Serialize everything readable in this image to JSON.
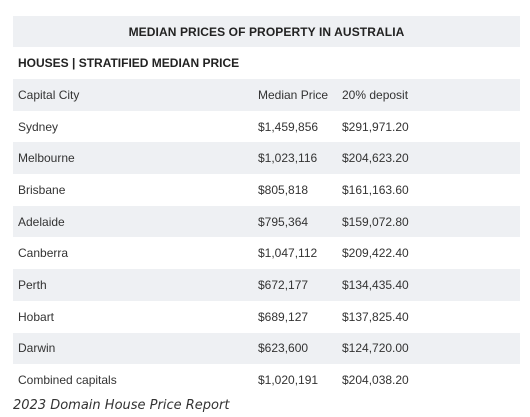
{
  "table": {
    "title": "MEDIAN PRICES OF PROPERTY IN AUSTRALIA",
    "subtitle": "HOUSES | STRATIFIED MEDIAN PRICE",
    "headers": [
      "Capital City",
      "Median Price",
      "20% deposit"
    ],
    "rows": [
      [
        "Sydney",
        "$1,459,856",
        "$291,971.20"
      ],
      [
        "Melbourne",
        "$1,023,116",
        "$204,623.20"
      ],
      [
        "Brisbane",
        "$805,818",
        "$161,163.60"
      ],
      [
        "Adelaide",
        "$795,364",
        "$159,072.80"
      ],
      [
        "Canberra",
        "$1,047,112",
        "$209,422.40"
      ],
      [
        "Perth",
        "$672,177",
        "$134,435.40"
      ],
      [
        "Hobart",
        "$689,127",
        "$137,825.40"
      ],
      [
        "Darwin",
        "$623,600",
        "$124,720.00"
      ],
      [
        "Combined capitals",
        "$1,020,191",
        "$204,038.20"
      ]
    ]
  },
  "caption": "2023 Domain House Price Report",
  "colors": {
    "row_shade": "#eef0f3",
    "text": "#333333"
  }
}
